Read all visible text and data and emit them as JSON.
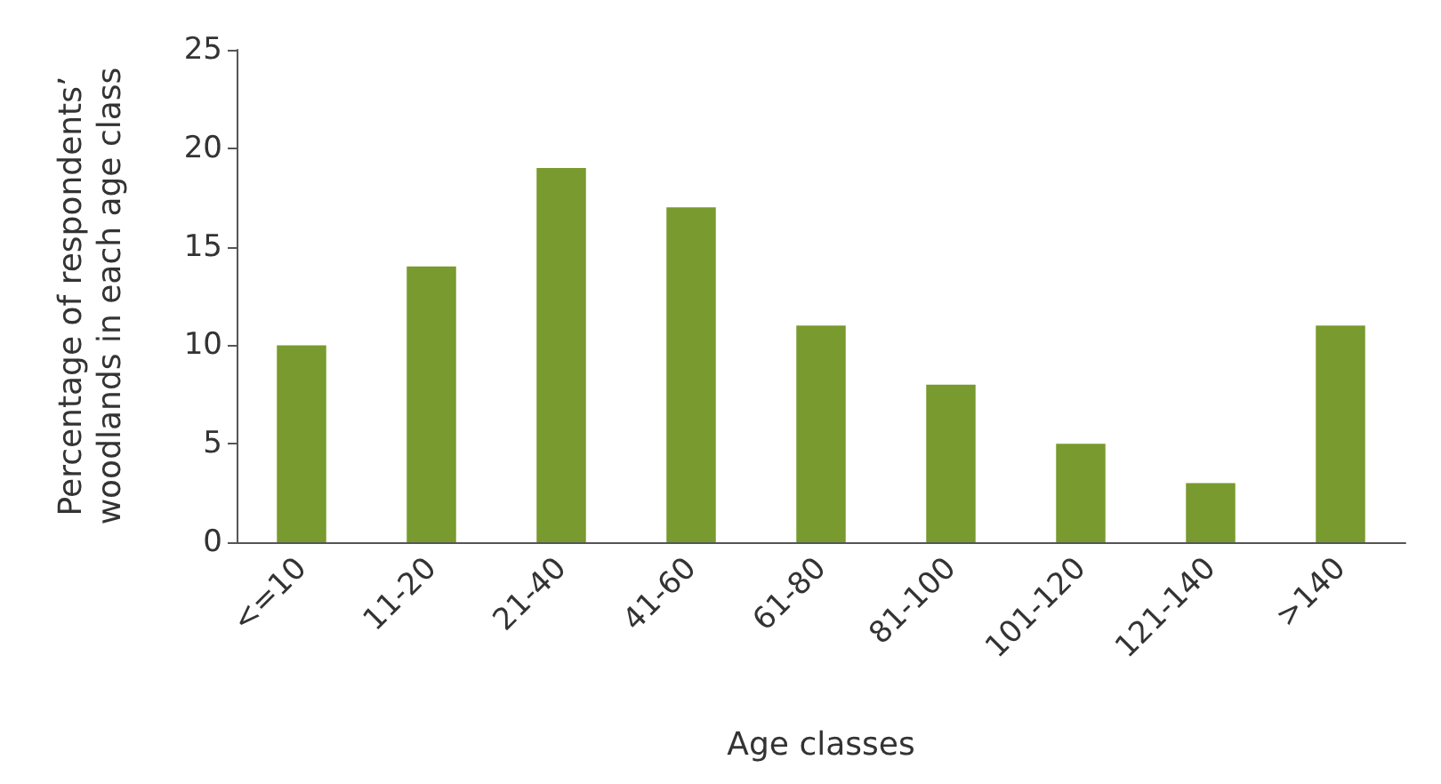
{
  "chart_data": {
    "type": "bar",
    "xlabel": "Age classes",
    "ylabel": "Percentage of respondents’\nwoodlands in each age class",
    "categories": [
      "<=10",
      "11-20",
      "21-40",
      "41-60",
      "61-80",
      "81-100",
      "101-120",
      "121-140",
      ">140"
    ],
    "values": [
      10,
      14,
      19,
      17,
      11,
      8,
      5,
      3,
      11
    ],
    "color": "#789a2e",
    "ylim": [
      0,
      25
    ],
    "yticks": [
      0,
      5,
      10,
      15,
      20,
      25
    ]
  }
}
